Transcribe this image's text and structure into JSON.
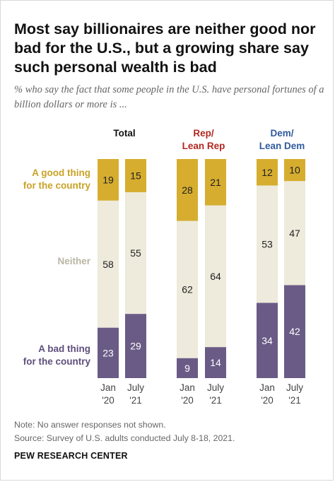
{
  "title": "Most say billionaires are neither good nor bad for the U.S., but a growing share say such personal wealth is bad",
  "subtitle": "% who say the fact that some people in the U.S. have personal fortunes of a billion dollars or more is ...",
  "row_labels": {
    "good": [
      "A good thing",
      "for the country"
    ],
    "neither": [
      "Neither"
    ],
    "bad": [
      "A bad thing",
      "for the country"
    ]
  },
  "groups": [
    {
      "header": [
        "Total"
      ]
    },
    {
      "header": [
        "Rep/",
        "Lean Rep"
      ]
    },
    {
      "header": [
        "Dem/",
        "Lean Dem"
      ]
    }
  ],
  "colors": {
    "good": "#d6ad2f",
    "neither": "#eeeadc",
    "bad": "#6a5b86",
    "total_header": "#111111",
    "rep_header": "#b22720",
    "dem_header": "#2f5a9e",
    "good_label": "#c9a227",
    "neither_label": "#b9b6a4",
    "bad_label": "#5e4f7c"
  },
  "chart_data": {
    "type": "bar",
    "stacked": true,
    "orientation": "vertical",
    "categories": [
      {
        "group": "Total",
        "period": [
          "Jan",
          "'20"
        ]
      },
      {
        "group": "Total",
        "period": [
          "July",
          "'21"
        ]
      },
      {
        "group": "Rep/Lean Rep",
        "period": [
          "Jan",
          "'20"
        ]
      },
      {
        "group": "Rep/Lean Rep",
        "period": [
          "July",
          "'21"
        ]
      },
      {
        "group": "Dem/Lean Dem",
        "period": [
          "Jan",
          "'20"
        ]
      },
      {
        "group": "Dem/Lean Dem",
        "period": [
          "July",
          "'21"
        ]
      }
    ],
    "series": [
      {
        "name": "A good thing for the country",
        "key": "good",
        "values": [
          19,
          15,
          28,
          21,
          12,
          10
        ]
      },
      {
        "name": "Neither",
        "key": "neither",
        "values": [
          58,
          55,
          62,
          64,
          53,
          47
        ]
      },
      {
        "name": "A bad thing for the country",
        "key": "bad",
        "values": [
          23,
          29,
          9,
          14,
          34,
          42
        ]
      }
    ],
    "ylim": [
      0,
      100
    ]
  },
  "notes": {
    "note": "Note: No answer responses not shown.",
    "source": "Source: Survey of U.S. adults conducted July 8-18, 2021."
  },
  "footer": "PEW RESEARCH CENTER"
}
